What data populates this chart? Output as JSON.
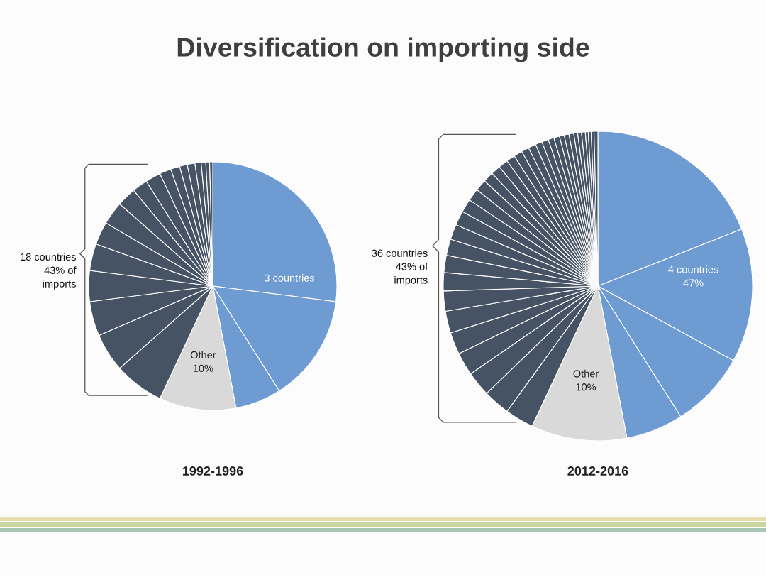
{
  "chart_data": [
    {
      "type": "pie",
      "title": "Diversification on importing side",
      "xlabel": "1992-1996",
      "categories": [
        null,
        null,
        null,
        null,
        null,
        null,
        null,
        null,
        null,
        null,
        null,
        null,
        null,
        null,
        null,
        null,
        null,
        null,
        null,
        null,
        null,
        null
      ],
      "values": [
        27,
        14,
        6,
        10,
        6.5,
        5,
        4.5,
        4,
        3.5,
        3,
        3,
        2.5,
        2,
        2,
        1.5,
        1.2,
        1,
        1,
        0.8,
        0.6,
        0.5,
        0.4
      ],
      "colors": [
        "#6f9bd3",
        "#6f9bd3",
        "#6f9bd3",
        "#d9d9d9",
        "#465364",
        "#465364",
        "#465364",
        "#465364",
        "#465364",
        "#465364",
        "#465364",
        "#465364",
        "#465364",
        "#465364",
        "#465364",
        "#465364",
        "#465364",
        "#465364",
        "#465364",
        "#465364",
        "#465364",
        "#465364"
      ],
      "annotations": [
        "3 countries",
        "Other\n10%",
        "18 countries\n43% of\nimports"
      ]
    },
    {
      "type": "pie",
      "xlabel": "2012-2016",
      "categories": [
        null,
        null,
        null,
        null,
        null,
        null,
        null,
        null,
        null,
        null,
        null,
        null,
        null,
        null,
        null,
        null,
        null,
        null,
        null,
        null,
        null,
        null,
        null,
        null,
        null,
        null,
        null,
        null,
        null,
        null,
        null,
        null,
        null,
        null,
        null,
        null,
        null,
        null,
        null,
        null,
        null
      ],
      "values": [
        19,
        14,
        8,
        6,
        10,
        3,
        2.8,
        2.6,
        2.4,
        2.3,
        2.3,
        2.1,
        1.9,
        1.8,
        1.7,
        1.6,
        1.5,
        1.4,
        1.3,
        1.2,
        1.1,
        1,
        1,
        0.9,
        0.9,
        0.8,
        0.8,
        0.7,
        0.7,
        0.6,
        0.6,
        0.5,
        0.5,
        0.5,
        0.4,
        0.4,
        0.4,
        0.3,
        0.3,
        0.3,
        0.4
      ],
      "colors": [
        "#6f9bd3",
        "#6f9bd3",
        "#6f9bd3",
        "#6f9bd3",
        "#d9d9d9",
        "#465364",
        "#465364",
        "#465364",
        "#465364",
        "#465364",
        "#465364",
        "#465364",
        "#465364",
        "#465364",
        "#465364",
        "#465364",
        "#465364",
        "#465364",
        "#465364",
        "#465364",
        "#465364",
        "#465364",
        "#465364",
        "#465364",
        "#465364",
        "#465364",
        "#465364",
        "#465364",
        "#465364",
        "#465364",
        "#465364",
        "#465364",
        "#465364",
        "#465364",
        "#465364",
        "#465364",
        "#465364",
        "#465364",
        "#465364",
        "#465364",
        "#465364"
      ],
      "annotations": [
        "4 countries\n47%",
        "Other\n10%",
        "36 countries\n43% of\nimports"
      ]
    }
  ]
}
